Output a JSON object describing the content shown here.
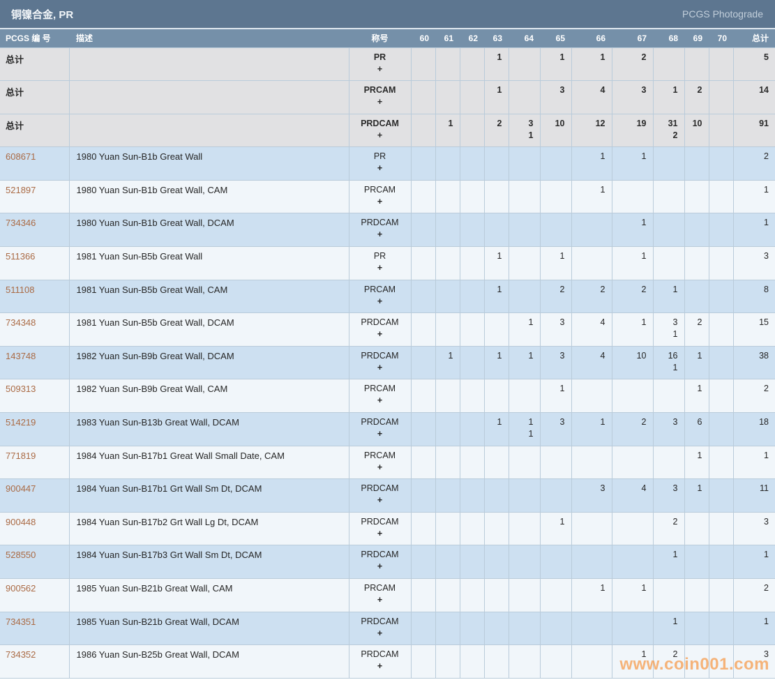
{
  "title_bar": {
    "title": "铜镍合金, PR",
    "right_label": "PCGS Photograde"
  },
  "watermark": "www.coin001.com",
  "colors": {
    "title_bar_bg": "#5d7690",
    "table_header_bg": "#7590a9",
    "total_row_bg": "#e1e1e3",
    "row_blue": "#cde0f1",
    "row_light": "#f1f6fa",
    "grid_line": "#b9cbda",
    "pcgs_link": "#aa6a44",
    "watermark_orange": "#f69846"
  },
  "table": {
    "plus_label": "+",
    "headers": {
      "pcgs": "PCGS 编 号",
      "desc": "描述",
      "desig": "称号",
      "grades": [
        "60",
        "61",
        "62",
        "63",
        "64",
        "65",
        "66",
        "67",
        "68",
        "69",
        "70"
      ],
      "total": "总计"
    },
    "rows": [
      {
        "type": "total",
        "label": "总计",
        "desc": "",
        "desig": "PR",
        "values": {
          "63": "1",
          "65": "1",
          "66": "1",
          "67": "2"
        },
        "plus": {},
        "total": "5"
      },
      {
        "type": "total",
        "label": "总计",
        "desc": "",
        "desig": "PRCAM",
        "values": {
          "63": "1",
          "65": "3",
          "66": "4",
          "67": "3",
          "68": "1",
          "69": "2"
        },
        "plus": {},
        "total": "14"
      },
      {
        "type": "total",
        "label": "总计",
        "desc": "",
        "desig": "PRDCAM",
        "values": {
          "61": "1",
          "63": "2",
          "64": "3",
          "65": "10",
          "66": "12",
          "67": "19",
          "68": "31",
          "69": "10"
        },
        "plus": {
          "64": "1",
          "68": "2"
        },
        "total": "91"
      },
      {
        "type": "data",
        "pcgs": "608671",
        "desc": "1980 Yuan Sun-B1b Great Wall",
        "desig": "PR",
        "values": {
          "66": "1",
          "67": "1"
        },
        "plus": {},
        "total": "2"
      },
      {
        "type": "data",
        "pcgs": "521897",
        "desc": "1980 Yuan Sun-B1b Great Wall, CAM",
        "desig": "PRCAM",
        "values": {
          "66": "1"
        },
        "plus": {},
        "total": "1"
      },
      {
        "type": "data",
        "pcgs": "734346",
        "desc": "1980 Yuan Sun-B1b Great Wall, DCAM",
        "desig": "PRDCAM",
        "values": {
          "67": "1"
        },
        "plus": {},
        "total": "1"
      },
      {
        "type": "data",
        "pcgs": "511366",
        "desc": "1981 Yuan Sun-B5b Great Wall",
        "desig": "PR",
        "values": {
          "63": "1",
          "65": "1",
          "67": "1"
        },
        "plus": {},
        "total": "3"
      },
      {
        "type": "data",
        "pcgs": "511108",
        "desc": "1981 Yuan Sun-B5b Great Wall, CAM",
        "desig": "PRCAM",
        "values": {
          "63": "1",
          "65": "2",
          "66": "2",
          "67": "2",
          "68": "1"
        },
        "plus": {},
        "total": "8"
      },
      {
        "type": "data",
        "pcgs": "734348",
        "desc": "1981 Yuan Sun-B5b Great Wall, DCAM",
        "desig": "PRDCAM",
        "values": {
          "64": "1",
          "65": "3",
          "66": "4",
          "67": "1",
          "68": "3",
          "69": "2"
        },
        "plus": {
          "68": "1"
        },
        "total": "15"
      },
      {
        "type": "data",
        "pcgs": "143748",
        "desc": "1982 Yuan Sun-B9b Great Wall, DCAM",
        "desig": "PRDCAM",
        "values": {
          "61": "1",
          "63": "1",
          "64": "1",
          "65": "3",
          "66": "4",
          "67": "10",
          "68": "16",
          "69": "1"
        },
        "plus": {
          "68": "1"
        },
        "total": "38"
      },
      {
        "type": "data",
        "pcgs": "509313",
        "desc": "1982 Yuan Sun-B9b Great Wall, CAM",
        "desig": "PRCAM",
        "values": {
          "65": "1",
          "69": "1"
        },
        "plus": {},
        "total": "2"
      },
      {
        "type": "data",
        "pcgs": "514219",
        "desc": "1983 Yuan Sun-B13b Great Wall, DCAM",
        "desig": "PRDCAM",
        "values": {
          "63": "1",
          "64": "1",
          "65": "3",
          "66": "1",
          "67": "2",
          "68": "3",
          "69": "6"
        },
        "plus": {
          "64": "1"
        },
        "total": "18"
      },
      {
        "type": "data",
        "pcgs": "771819",
        "desc": "1984 Yuan Sun-B17b1 Great Wall Small Date, CAM",
        "desig": "PRCAM",
        "values": {
          "69": "1"
        },
        "plus": {},
        "total": "1"
      },
      {
        "type": "data",
        "pcgs": "900447",
        "desc": "1984 Yuan Sun-B17b1 Grt Wall Sm Dt, DCAM",
        "desig": "PRDCAM",
        "values": {
          "66": "3",
          "67": "4",
          "68": "3",
          "69": "1"
        },
        "plus": {},
        "total": "11"
      },
      {
        "type": "data",
        "pcgs": "900448",
        "desc": "1984 Yuan Sun-B17b2 Grt Wall Lg Dt, DCAM",
        "desig": "PRDCAM",
        "values": {
          "65": "1",
          "68": "2"
        },
        "plus": {},
        "total": "3"
      },
      {
        "type": "data",
        "pcgs": "528550",
        "desc": "1984 Yuan Sun-B17b3 Grt Wall Sm Dt, DCAM",
        "desig": "PRDCAM",
        "values": {
          "68": "1"
        },
        "plus": {},
        "total": "1"
      },
      {
        "type": "data",
        "pcgs": "900562",
        "desc": "1985 Yuan Sun-B21b Great Wall, CAM",
        "desig": "PRCAM",
        "values": {
          "66": "1",
          "67": "1"
        },
        "plus": {},
        "total": "2"
      },
      {
        "type": "data",
        "pcgs": "734351",
        "desc": "1985 Yuan Sun-B21b Great Wall, DCAM",
        "desig": "PRDCAM",
        "values": {
          "68": "1"
        },
        "plus": {},
        "total": "1"
      },
      {
        "type": "data",
        "pcgs": "734352",
        "desc": "1986 Yuan Sun-B25b Great Wall, DCAM",
        "desig": "PRDCAM",
        "values": {
          "67": "1",
          "68": "2"
        },
        "plus": {},
        "total": "3"
      }
    ]
  }
}
